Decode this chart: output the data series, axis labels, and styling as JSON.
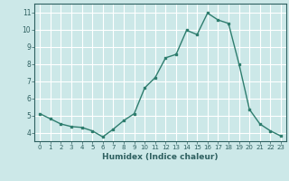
{
  "x": [
    0,
    1,
    2,
    3,
    4,
    5,
    6,
    7,
    8,
    9,
    10,
    11,
    12,
    13,
    14,
    15,
    16,
    17,
    18,
    19,
    20,
    21,
    22,
    23
  ],
  "y": [
    5.1,
    4.8,
    4.5,
    4.35,
    4.3,
    4.1,
    3.75,
    4.2,
    4.7,
    5.1,
    6.6,
    7.2,
    8.35,
    8.55,
    9.95,
    9.7,
    10.95,
    10.55,
    10.35,
    8.0,
    5.35,
    4.5,
    4.1,
    3.8
  ],
  "xlabel": "Humidex (Indice chaleur)",
  "line_color": "#2e7d6e",
  "bg_color": "#cce8e8",
  "grid_color": "#ffffff",
  "ylim": [
    3.5,
    11.5
  ],
  "xlim": [
    -0.5,
    23.5
  ],
  "yticks": [
    4,
    5,
    6,
    7,
    8,
    9,
    10,
    11
  ],
  "xtick_labels": [
    "0",
    "1",
    "2",
    "3",
    "4",
    "5",
    "6",
    "7",
    "8",
    "9",
    "10",
    "11",
    "12",
    "13",
    "14",
    "15",
    "16",
    "17",
    "18",
    "19",
    "20",
    "21",
    "22",
    "23"
  ]
}
